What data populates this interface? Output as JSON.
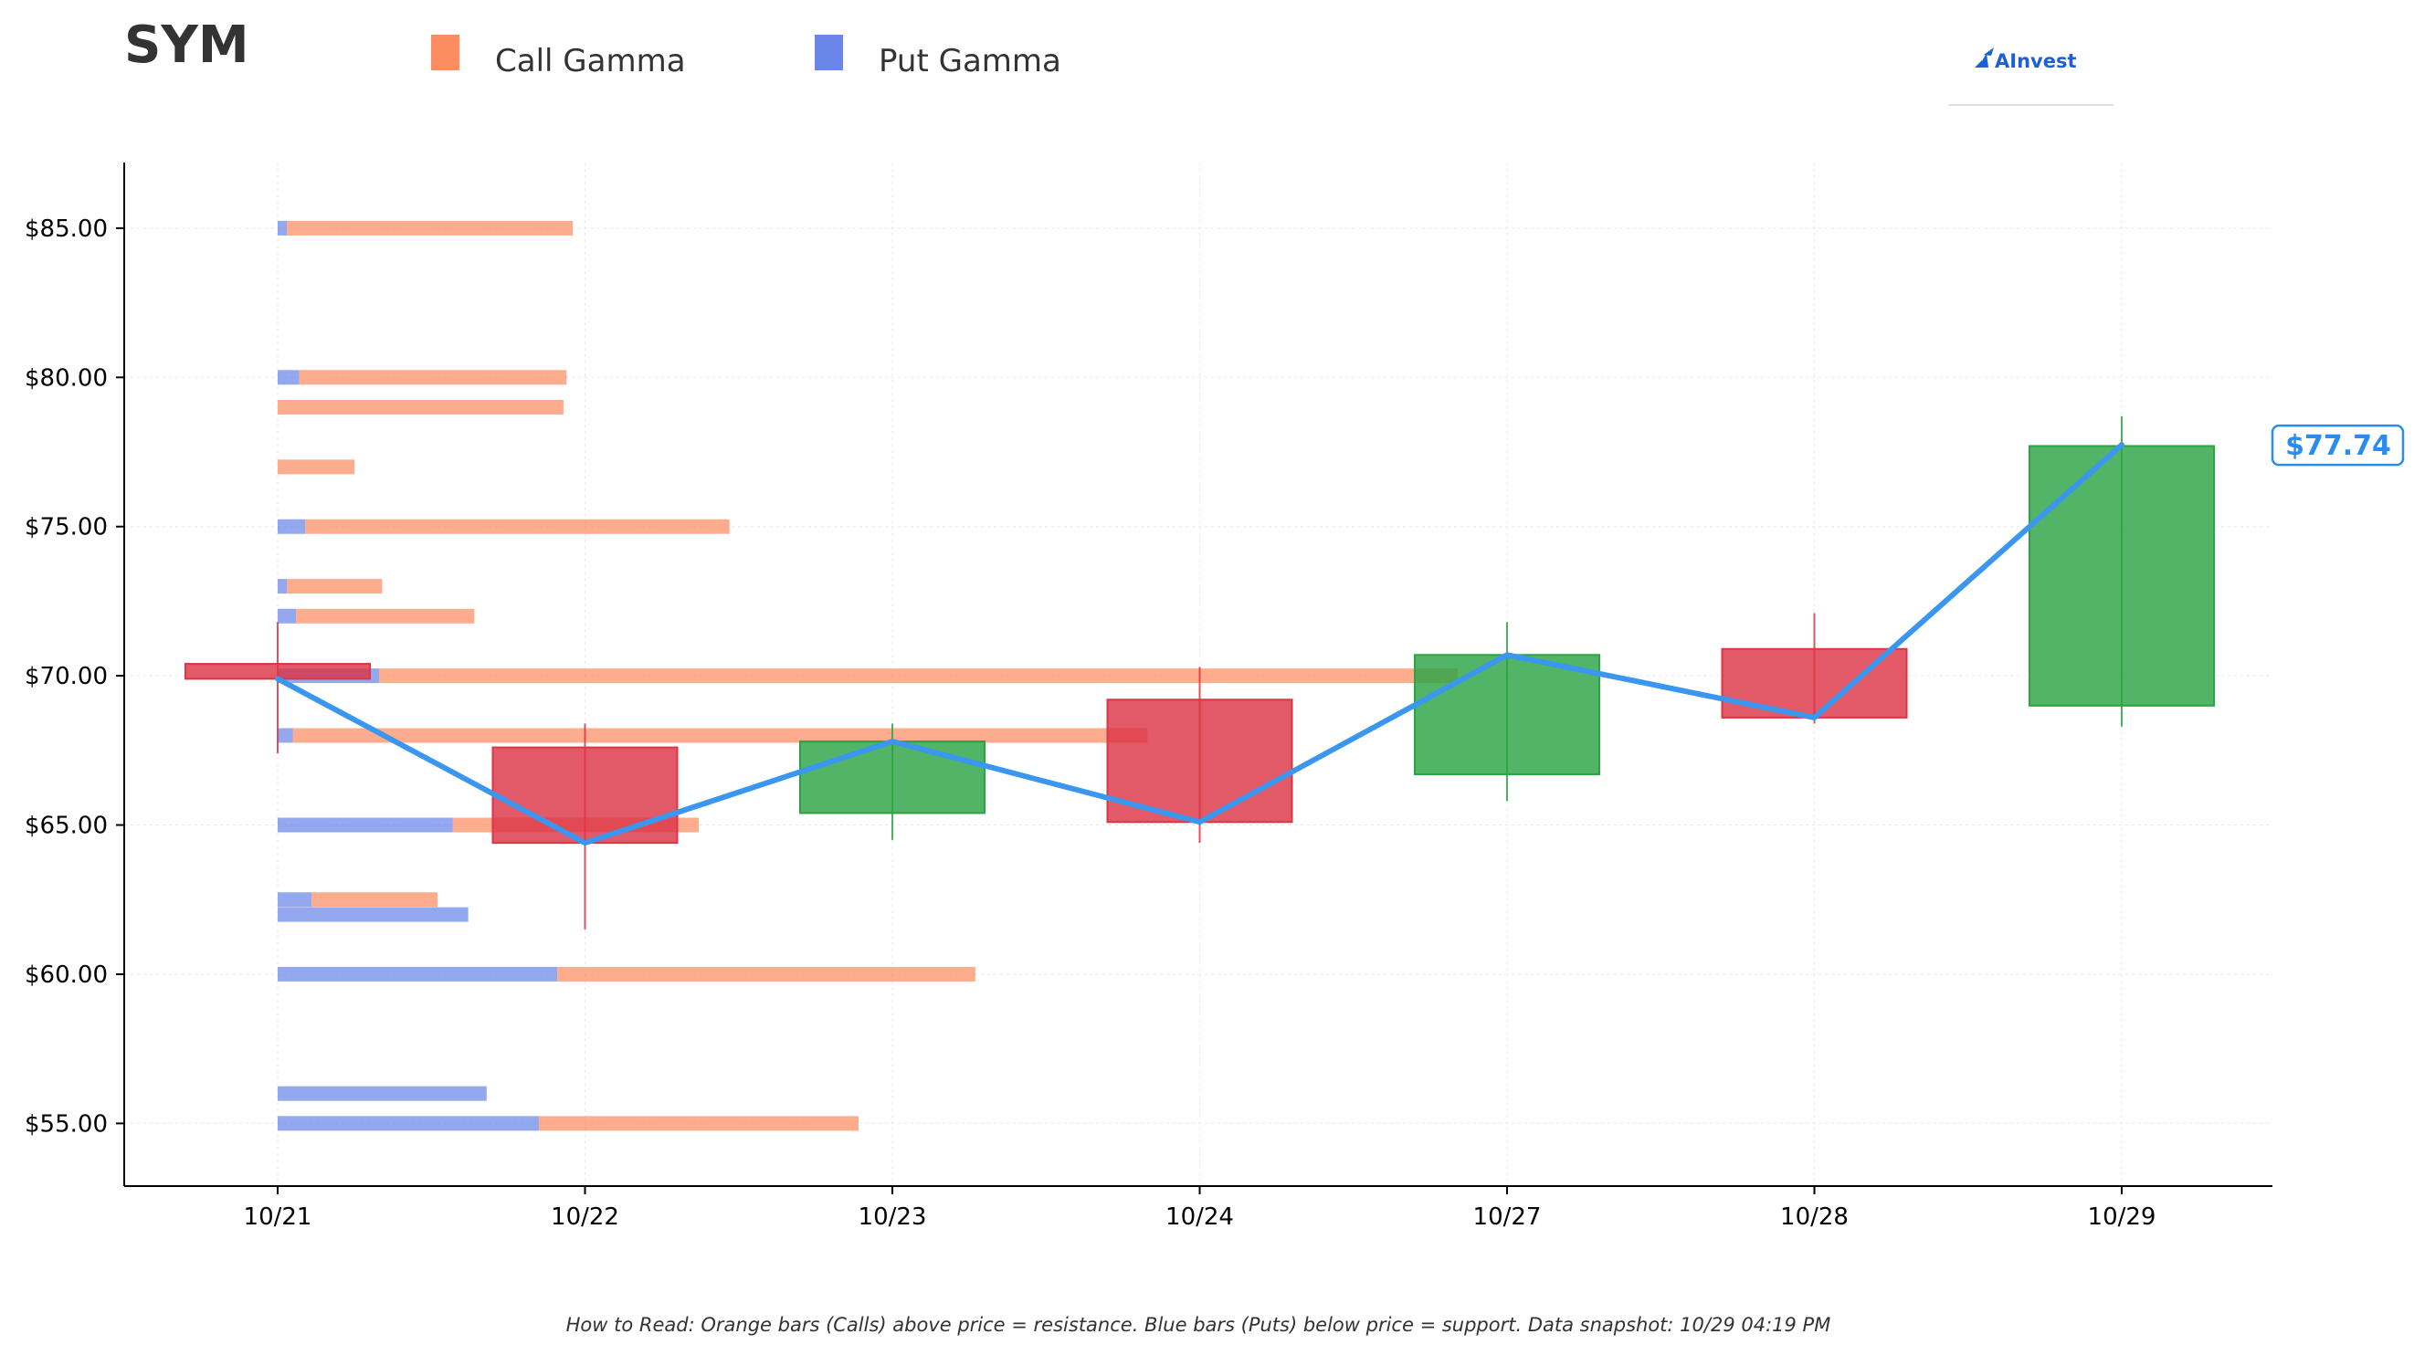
{
  "chart_data": {
    "type": "candlestick",
    "title": "SYM",
    "legend": [
      {
        "label": "Call Gamma",
        "color": "#fc8d62"
      },
      {
        "label": "Put Gamma",
        "color": "#6a86e8"
      }
    ],
    "legend_position": "top",
    "branding": "AInvest",
    "categories": [
      "10/21",
      "10/22",
      "10/23",
      "10/24",
      "10/27",
      "10/28",
      "10/29"
    ],
    "y_tick_labels": [
      "$55.00",
      "$60.00",
      "$65.00",
      "$70.00",
      "$75.00",
      "$80.00",
      "$85.00"
    ],
    "y_ticks": [
      55,
      60,
      65,
      70,
      75,
      80,
      85
    ],
    "ylim": [
      52.9,
      87.2
    ],
    "grid": true,
    "candles": [
      {
        "date": "10/21",
        "open": 70.4,
        "high": 71.8,
        "low": 67.4,
        "close": 69.9
      },
      {
        "date": "10/22",
        "open": 67.6,
        "high": 68.4,
        "low": 61.5,
        "close": 64.4
      },
      {
        "date": "10/23",
        "open": 65.4,
        "high": 68.4,
        "low": 64.5,
        "close": 67.8
      },
      {
        "date": "10/24",
        "open": 69.2,
        "high": 70.3,
        "low": 64.4,
        "close": 65.1
      },
      {
        "date": "10/27",
        "open": 66.7,
        "high": 71.8,
        "low": 65.8,
        "close": 70.7
      },
      {
        "date": "10/28",
        "open": 70.9,
        "high": 72.1,
        "low": 68.4,
        "close": 68.6
      },
      {
        "date": "10/29",
        "open": 69.0,
        "high": 78.7,
        "low": 68.3,
        "close": 77.7
      }
    ],
    "close_line": [
      69.9,
      64.4,
      67.8,
      65.1,
      70.7,
      68.6,
      77.74
    ],
    "last_price_label": "$77.74",
    "gamma_levels": [
      {
        "strike": 85,
        "call": 0.93,
        "put": 0.03
      },
      {
        "strike": 80,
        "call": 0.87,
        "put": 0.07
      },
      {
        "strike": 79,
        "call": 0.93,
        "put": 0.0
      },
      {
        "strike": 77,
        "call": 0.25,
        "put": 0.0
      },
      {
        "strike": 75,
        "call": 1.38,
        "put": 0.09
      },
      {
        "strike": 73,
        "call": 0.31,
        "put": 0.03
      },
      {
        "strike": 72,
        "call": 0.58,
        "put": 0.06
      },
      {
        "strike": 70,
        "call": 3.51,
        "put": 0.33
      },
      {
        "strike": 68,
        "call": 2.78,
        "put": 0.05
      },
      {
        "strike": 65,
        "call": 0.8,
        "put": 0.57
      },
      {
        "strike": 62.5,
        "call": 0.41,
        "put": 0.11
      },
      {
        "strike": 62,
        "call": 0.0,
        "put": 0.62
      },
      {
        "strike": 60,
        "call": 1.36,
        "put": 0.91
      },
      {
        "strike": 56,
        "call": 0.0,
        "put": 0.68
      },
      {
        "strike": 55,
        "call": 1.04,
        "put": 0.85
      }
    ],
    "colors": {
      "call": "#fc8d62",
      "put": "#6a86e8",
      "up_candle": "#2ca444",
      "down_candle": "#dc3545",
      "close_line": "#3a96ef",
      "axis": "#000000",
      "grid": "#e8e8e8"
    },
    "footnote": "How to Read: Orange bars (Calls) above price = resistance. Blue bars (Puts) below price = support. Data snapshot: 10/29 04:19 PM"
  }
}
